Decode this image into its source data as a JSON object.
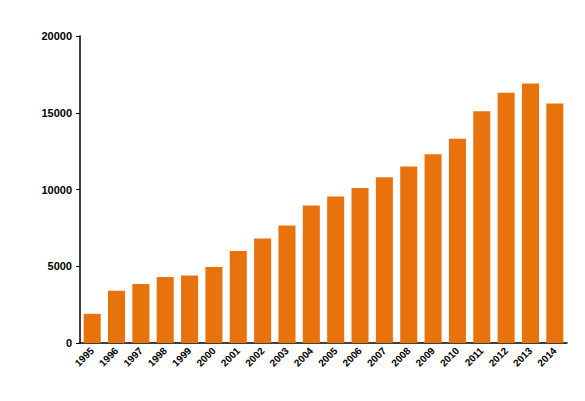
{
  "chart_data": {
    "type": "bar",
    "categories": [
      "1995",
      "1996",
      "1997",
      "1998",
      "1999",
      "2000",
      "2001",
      "2002",
      "2003",
      "2004",
      "2005",
      "2006",
      "2007",
      "2008",
      "2009",
      "2010",
      "2011",
      "2012",
      "2013",
      "2014"
    ],
    "values": [
      1900,
      3400,
      3850,
      4300,
      4400,
      4950,
      6000,
      6800,
      7650,
      8950,
      9550,
      10100,
      10800,
      11500,
      12300,
      13300,
      15100,
      16300,
      16900,
      15600
    ],
    "color": "#e8720c",
    "ylim": [
      0,
      20000
    ],
    "yticks": [
      0,
      5000,
      10000,
      15000,
      20000
    ],
    "grid": false
  }
}
